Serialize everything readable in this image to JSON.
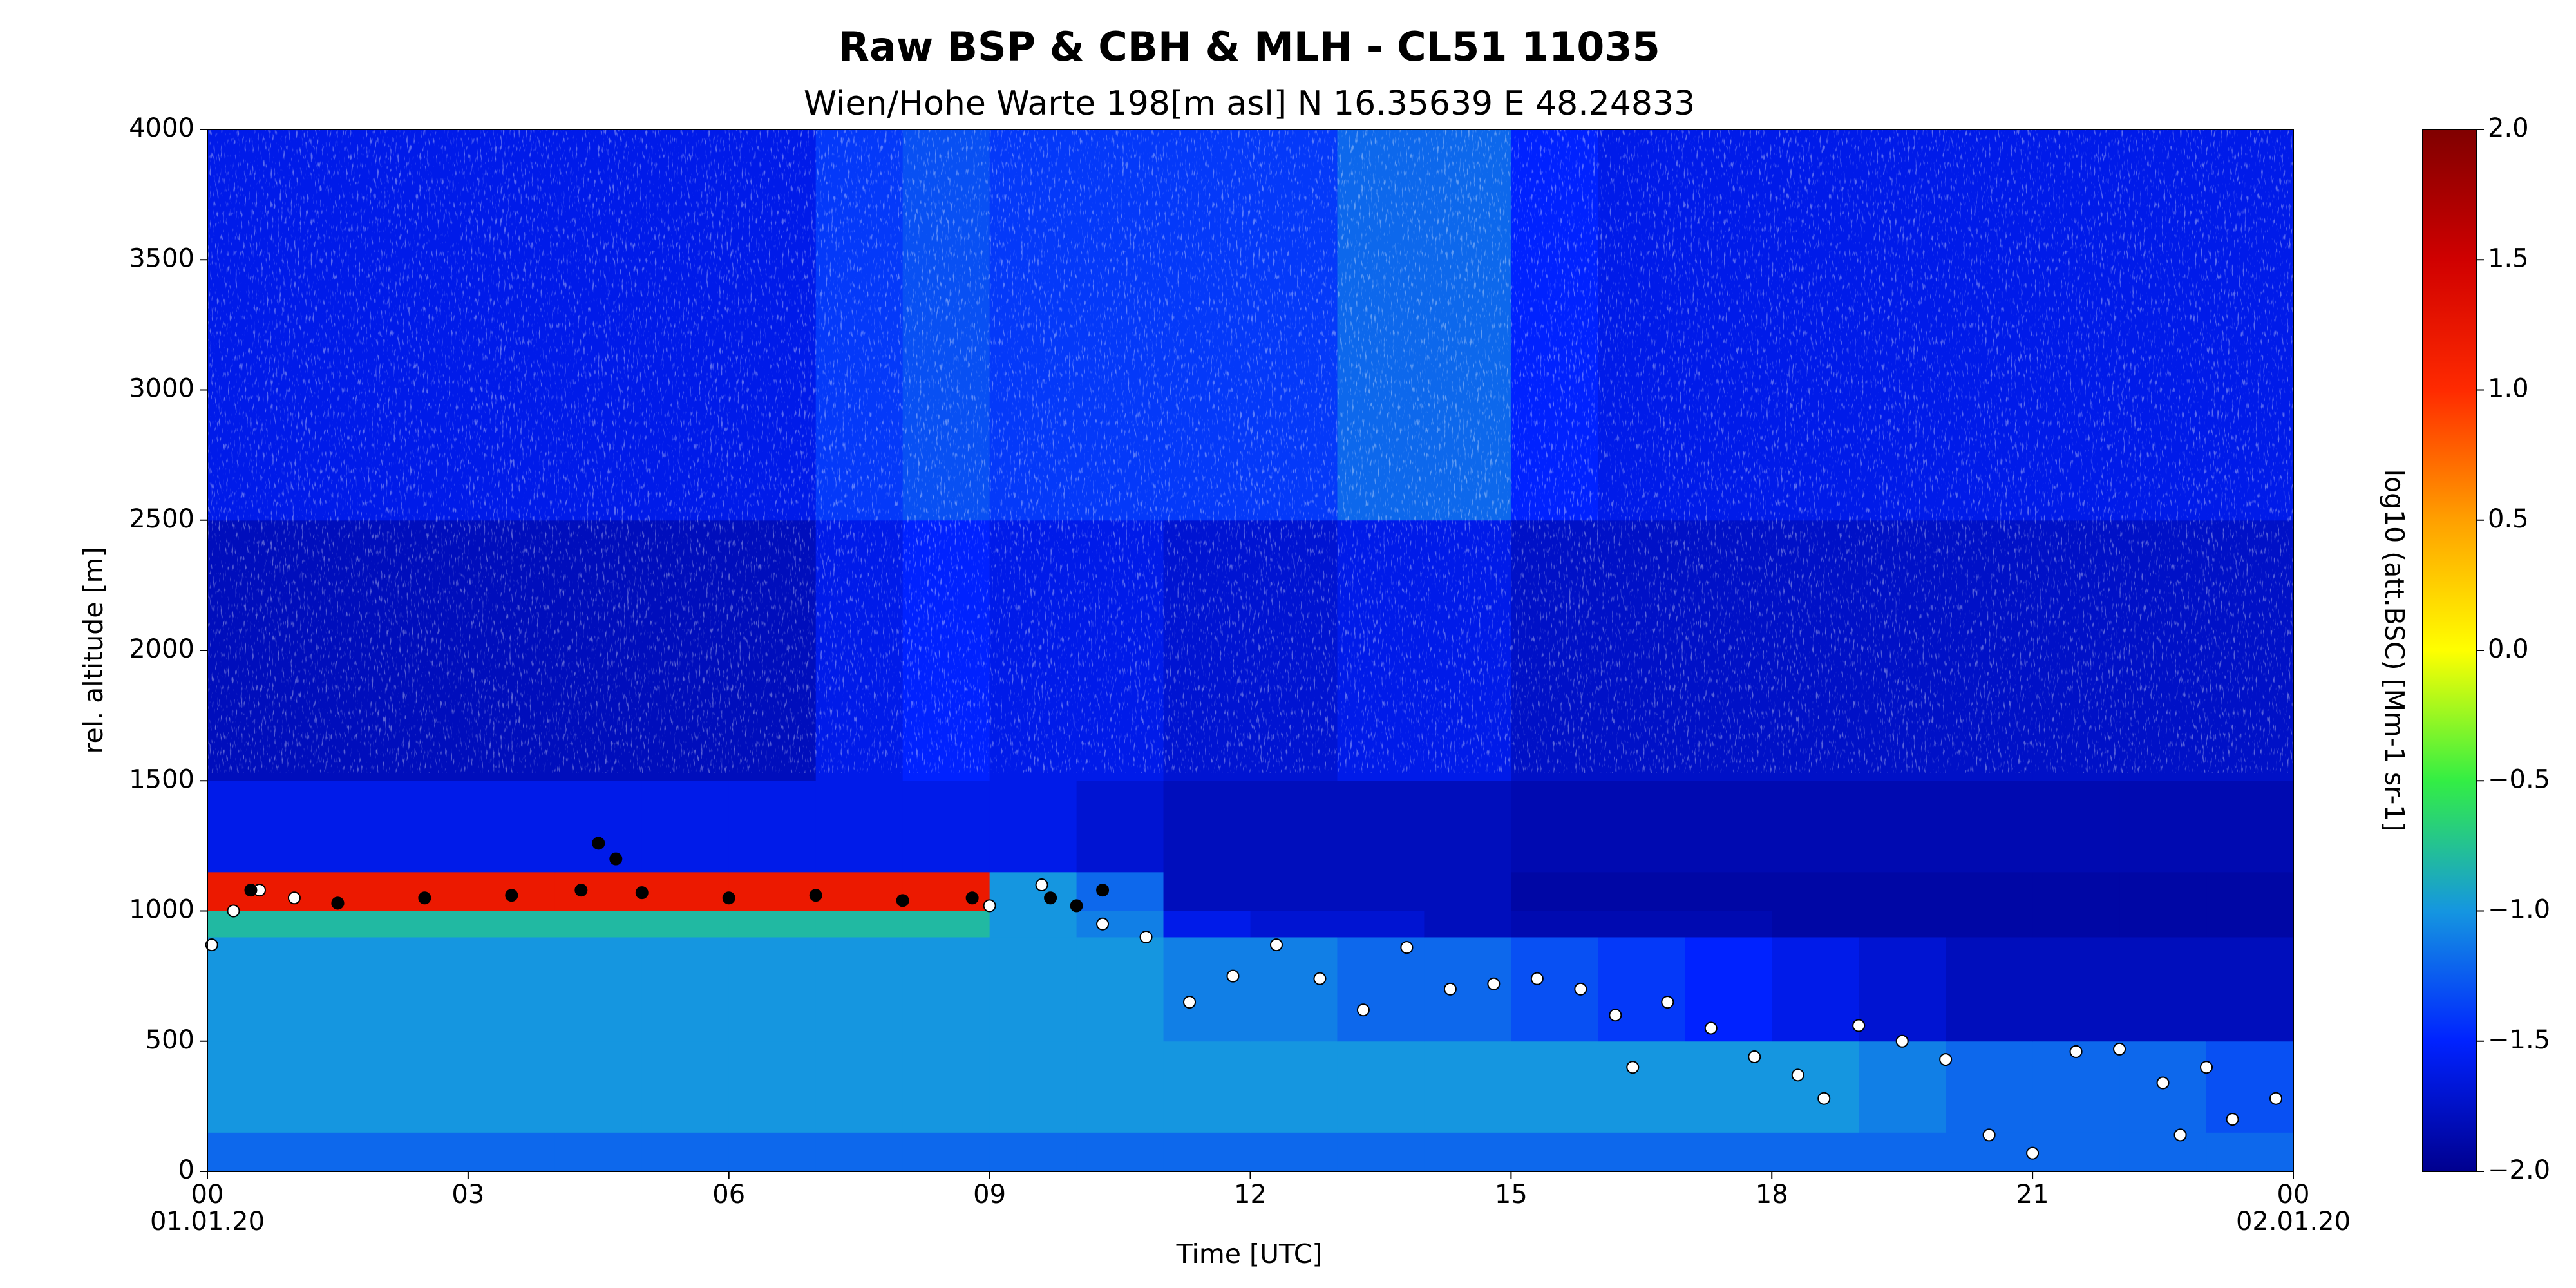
{
  "chart_data": {
    "type": "heatmap",
    "title": "Raw BSP & CBH & MLH - CL51 11035",
    "subtitle": "Wien/Hohe Warte   198[m asl]    N 16.35639  E 48.24833",
    "xlabel": "Time [UTC]",
    "ylabel": "rel. altitude [m]",
    "colorbar_label": "log10 (att.BSC) [Mm-1 sr-1]",
    "xlim": [
      0,
      24
    ],
    "xticks": [
      {
        "value": 0,
        "label": "00"
      },
      {
        "value": 3,
        "label": "03"
      },
      {
        "value": 6,
        "label": "06"
      },
      {
        "value": 9,
        "label": "09"
      },
      12,
      15,
      18,
      21,
      {
        "value": 24,
        "label": "00"
      }
    ],
    "xtick_dates": [
      {
        "value": 0,
        "label": "01.01.20"
      },
      {
        "value": 24,
        "label": "02.01.20"
      }
    ],
    "ylim": [
      0,
      4000
    ],
    "yticks": [
      0,
      500,
      1000,
      1500,
      2000,
      2500,
      3000,
      3500,
      4000
    ],
    "clim": [
      -2,
      2
    ],
    "cticks": [
      {
        "value": -2,
        "label": "−2.0"
      },
      {
        "value": -1.5,
        "label": "−1.5"
      },
      {
        "value": -1,
        "label": "−1.0"
      },
      {
        "value": -0.5,
        "label": "−0.5"
      },
      {
        "value": 0,
        "label": "0.0"
      },
      {
        "value": 0.5,
        "label": "0.5"
      },
      {
        "value": 1,
        "label": "1.0"
      },
      {
        "value": 1.5,
        "label": "1.5"
      },
      {
        "value": 2,
        "label": "2.0"
      }
    ],
    "colormap": [
      "#00008f",
      "#0022ff",
      "#1596e0",
      "#33ee44",
      "#ffff00",
      "#ffa000",
      "#ff2a00",
      "#d00000",
      "#800000"
    ],
    "x_edges": [
      0,
      1,
      2,
      3,
      4,
      5,
      6,
      7,
      8,
      9,
      10,
      11,
      12,
      13,
      14,
      15,
      16,
      17,
      18,
      19,
      20,
      21,
      22,
      23,
      24
    ],
    "y_edges": [
      0,
      150,
      500,
      900,
      1000,
      1150,
      1500,
      2500,
      4000
    ],
    "z": [
      [
        -1.2,
        -1.2,
        -1.2,
        -1.2,
        -1.2,
        -1.2,
        -1.2,
        -1.2,
        -1.2,
        -1.2,
        -1.2,
        -1.2,
        -1.2,
        -1.2,
        -1.2,
        -1.2,
        -1.2,
        -1.2,
        -1.2,
        -1.2,
        -1.2,
        -1.2,
        -1.2,
        -1.2
      ],
      [
        -1.0,
        -1.0,
        -1.0,
        -1.0,
        -1.0,
        -1.0,
        -1.0,
        -1.0,
        -1.0,
        -1.0,
        -1.0,
        -1.0,
        -1.0,
        -1.0,
        -1.0,
        -1.0,
        -1.0,
        -1.0,
        -1.0,
        -1.1,
        -1.2,
        -1.2,
        -1.2,
        -1.3
      ],
      [
        -1.0,
        -1.0,
        -1.0,
        -1.0,
        -1.0,
        -1.0,
        -1.0,
        -1.0,
        -1.0,
        -1.0,
        -1.0,
        -1.1,
        -1.1,
        -1.2,
        -1.2,
        -1.3,
        -1.4,
        -1.5,
        -1.6,
        -1.7,
        -1.8,
        -1.8,
        -1.8,
        -1.8
      ],
      [
        -0.8,
        -0.8,
        -0.8,
        -0.8,
        -0.8,
        -0.8,
        -0.8,
        -0.8,
        -0.8,
        -1.0,
        -1.1,
        -1.6,
        -1.7,
        -1.7,
        -1.8,
        -1.85,
        -1.85,
        -1.85,
        -1.9,
        -1.9,
        -1.9,
        -1.9,
        -1.9,
        -1.9
      ],
      [
        1.2,
        1.2,
        1.2,
        1.2,
        1.2,
        1.2,
        1.2,
        1.2,
        1.2,
        -1.0,
        -1.2,
        -1.8,
        -1.8,
        -1.8,
        -1.8,
        -1.9,
        -1.9,
        -1.9,
        -1.9,
        -1.9,
        -1.9,
        -1.9,
        -1.9,
        -1.9
      ],
      [
        -1.6,
        -1.6,
        -1.6,
        -1.6,
        -1.6,
        -1.6,
        -1.6,
        -1.6,
        -1.6,
        -1.6,
        -1.7,
        -1.8,
        -1.8,
        -1.8,
        -1.8,
        -1.85,
        -1.85,
        -1.85,
        -1.85,
        -1.85,
        -1.85,
        -1.85,
        -1.85,
        -1.85
      ],
      [
        -1.8,
        -1.8,
        -1.8,
        -1.8,
        -1.8,
        -1.8,
        -1.8,
        -1.6,
        -1.5,
        -1.6,
        -1.6,
        -1.7,
        -1.7,
        -1.6,
        -1.6,
        -1.75,
        -1.75,
        -1.75,
        -1.75,
        -1.75,
        -1.75,
        -1.75,
        -1.75,
        -1.75
      ],
      [
        -1.6,
        -1.6,
        -1.6,
        -1.6,
        -1.6,
        -1.6,
        -1.6,
        -1.4,
        -1.3,
        -1.4,
        -1.4,
        -1.4,
        -1.4,
        -1.2,
        -1.2,
        -1.5,
        -1.6,
        -1.6,
        -1.6,
        -1.6,
        -1.6,
        -1.6,
        -1.6,
        -1.6
      ]
    ],
    "markers": [
      {
        "color": "#ffffff",
        "edgecolor": "#000000",
        "x": [
          0.05,
          0.3,
          0.6,
          1.0,
          1.5,
          9.0,
          9.6,
          10.3,
          10.8,
          11.3,
          11.8,
          12.3,
          12.8,
          13.3,
          13.8,
          14.3,
          14.8,
          15.3,
          15.8,
          16.2,
          16.4,
          16.8,
          17.3,
          17.8,
          18.3,
          18.6,
          19.0,
          19.5,
          20.0,
          20.5,
          21.0,
          21.5,
          22.0,
          22.5,
          22.7,
          23.0,
          23.3,
          23.8
        ],
        "y": [
          870,
          1000,
          1080,
          1050,
          1030,
          1020,
          1100,
          950,
          900,
          650,
          750,
          870,
          740,
          620,
          860,
          700,
          720,
          740,
          700,
          600,
          400,
          650,
          550,
          440,
          370,
          280,
          560,
          500,
          430,
          140,
          70,
          460,
          470,
          340,
          140,
          400,
          200,
          280
        ]
      },
      {
        "color": "#000000",
        "edgecolor": "#000000",
        "x": [
          0.5,
          1.5,
          2.5,
          3.5,
          4.3,
          4.5,
          4.7,
          5.0,
          6.0,
          7.0,
          8.0,
          8.8,
          9.7,
          10.0,
          10.3
        ],
        "y": [
          1080,
          1030,
          1050,
          1060,
          1080,
          1260,
          1200,
          1070,
          1050,
          1060,
          1040,
          1050,
          1050,
          1020,
          1080
        ]
      }
    ]
  }
}
